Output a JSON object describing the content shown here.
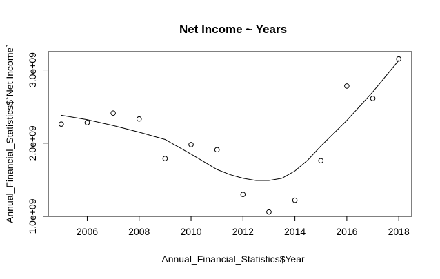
{
  "chart_data": {
    "type": "scatter",
    "title": "Net Income ~ Years",
    "xlabel": "Annual_Financial_Statistics$Year",
    "ylabel": "Annual_Financial_Statistics$`Net Income`",
    "xlim": [
      2004.5,
      2018.5
    ],
    "ylim": [
      1000000000.0,
      3250000000.0
    ],
    "x_ticks": [
      2006,
      2008,
      2010,
      2012,
      2014,
      2016,
      2018
    ],
    "x_tick_labels": [
      "2006",
      "2008",
      "2010",
      "2012",
      "2014",
      "2016",
      "2018"
    ],
    "y_ticks": [
      1000000000.0,
      2000000000.0,
      3000000000.0
    ],
    "y_tick_labels": [
      "1.0e+09",
      "2.0e+09",
      "3.0e+09"
    ],
    "grid": false,
    "points": [
      {
        "x": 2005,
        "y": 2260000000.0
      },
      {
        "x": 2006,
        "y": 2280000000.0
      },
      {
        "x": 2007,
        "y": 2410000000.0
      },
      {
        "x": 2008,
        "y": 2330000000.0
      },
      {
        "x": 2009,
        "y": 1790000000.0
      },
      {
        "x": 2010,
        "y": 1980000000.0
      },
      {
        "x": 2011,
        "y": 1910000000.0
      },
      {
        "x": 2012,
        "y": 1300000000.0
      },
      {
        "x": 2013,
        "y": 1060000000.0
      },
      {
        "x": 2014,
        "y": 1220000000.0
      },
      {
        "x": 2015,
        "y": 1760000000.0
      },
      {
        "x": 2016,
        "y": 2780000000.0
      },
      {
        "x": 2017,
        "y": 2610000000.0
      },
      {
        "x": 2018,
        "y": 3150000000.0
      }
    ],
    "smooth_line": [
      {
        "x": 2005,
        "y": 2380000000.0
      },
      {
        "x": 2006,
        "y": 2320000000.0
      },
      {
        "x": 2007,
        "y": 2240000000.0
      },
      {
        "x": 2008,
        "y": 2150000000.0
      },
      {
        "x": 2009,
        "y": 2050000000.0
      },
      {
        "x": 2010,
        "y": 1850000000.0
      },
      {
        "x": 2011,
        "y": 1640000000.0
      },
      {
        "x": 2011.5,
        "y": 1570000000.0
      },
      {
        "x": 2012,
        "y": 1520000000.0
      },
      {
        "x": 2012.5,
        "y": 1490000000.0
      },
      {
        "x": 2013,
        "y": 1490000000.0
      },
      {
        "x": 2013.5,
        "y": 1520000000.0
      },
      {
        "x": 2014,
        "y": 1620000000.0
      },
      {
        "x": 2014.5,
        "y": 1770000000.0
      },
      {
        "x": 2015,
        "y": 1960000000.0
      },
      {
        "x": 2016,
        "y": 2310000000.0
      },
      {
        "x": 2017,
        "y": 2700000000.0
      },
      {
        "x": 2018,
        "y": 3130000000.0
      }
    ]
  }
}
